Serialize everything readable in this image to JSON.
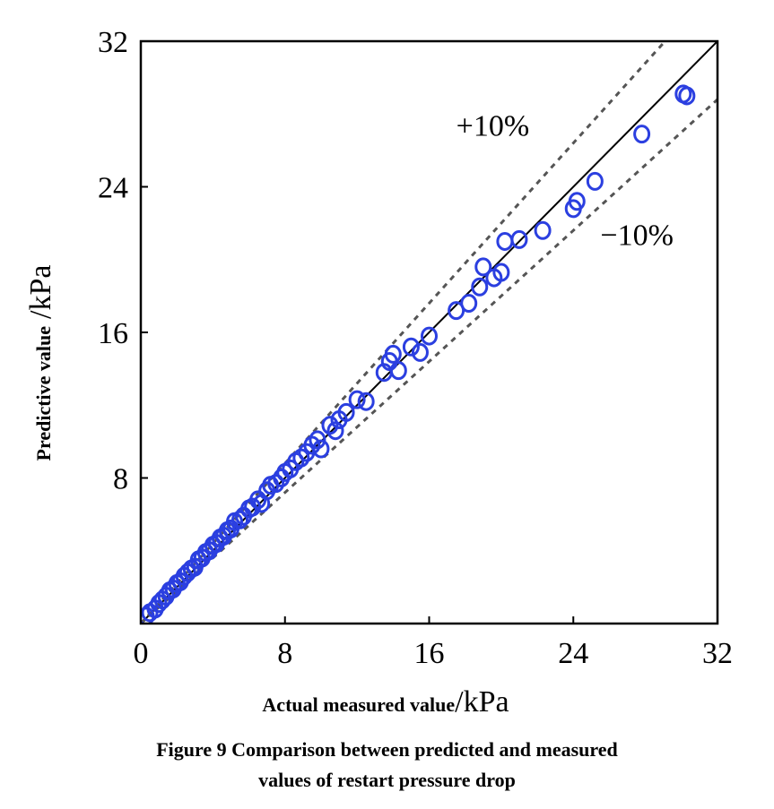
{
  "chart_data": {
    "type": "scatter",
    "xlabel": "Actual measured value",
    "xlabel_unit": "/kPa",
    "ylabel": "Predictive value",
    "ylabel_unit": "/kPa",
    "xlim": [
      0,
      32
    ],
    "ylim": [
      0,
      32
    ],
    "xticks": [
      0,
      8,
      16,
      24,
      32
    ],
    "yticks": [
      8,
      16,
      24,
      32
    ],
    "grid": false,
    "marker_color": "#2b3fe0",
    "reference_lines": [
      {
        "name": "y = x",
        "slope": 1.0,
        "style": "solid"
      },
      {
        "name": "+10%",
        "slope": 1.1,
        "style": "dashed"
      },
      {
        "name": "-10%",
        "slope": 0.9,
        "style": "dashed"
      }
    ],
    "annotations": [
      {
        "text": "+10%",
        "x": 17.5,
        "y": 26.8
      },
      {
        "text": "−10%",
        "x": 25.5,
        "y": 20.8
      }
    ],
    "series": [
      {
        "points": [
          [
            0.3,
            0.4
          ],
          [
            0.5,
            0.6
          ],
          [
            0.8,
            0.8
          ],
          [
            1.0,
            1.1
          ],
          [
            1.2,
            1.3
          ],
          [
            1.4,
            1.5
          ],
          [
            1.6,
            1.8
          ],
          [
            1.8,
            1.9
          ],
          [
            2.0,
            2.2
          ],
          [
            2.2,
            2.3
          ],
          [
            2.4,
            2.6
          ],
          [
            2.6,
            2.8
          ],
          [
            2.8,
            3.0
          ],
          [
            3.0,
            3.1
          ],
          [
            3.2,
            3.5
          ],
          [
            3.4,
            3.6
          ],
          [
            3.6,
            3.9
          ],
          [
            3.8,
            4.0
          ],
          [
            4.0,
            4.3
          ],
          [
            4.2,
            4.4
          ],
          [
            4.4,
            4.7
          ],
          [
            4.6,
            4.8
          ],
          [
            4.8,
            5.1
          ],
          [
            5.0,
            5.2
          ],
          [
            5.2,
            5.6
          ],
          [
            5.5,
            5.7
          ],
          [
            5.7,
            5.9
          ],
          [
            6.0,
            6.3
          ],
          [
            6.2,
            6.4
          ],
          [
            6.5,
            6.8
          ],
          [
            6.7,
            6.6
          ],
          [
            7.0,
            7.3
          ],
          [
            7.2,
            7.6
          ],
          [
            7.5,
            7.7
          ],
          [
            7.8,
            8.0
          ],
          [
            8.0,
            8.3
          ],
          [
            8.3,
            8.5
          ],
          [
            8.6,
            8.9
          ],
          [
            8.9,
            9.1
          ],
          [
            9.2,
            9.4
          ],
          [
            9.5,
            9.8
          ],
          [
            9.8,
            10.1
          ],
          [
            10.0,
            9.6
          ],
          [
            10.5,
            10.9
          ],
          [
            10.8,
            10.6
          ],
          [
            11.0,
            11.2
          ],
          [
            11.4,
            11.6
          ],
          [
            12.0,
            12.3
          ],
          [
            12.5,
            12.2
          ],
          [
            13.5,
            13.8
          ],
          [
            13.8,
            14.4
          ],
          [
            14.0,
            14.8
          ],
          [
            14.3,
            13.9
          ],
          [
            15.0,
            15.2
          ],
          [
            15.5,
            14.9
          ],
          [
            16.0,
            15.8
          ],
          [
            17.5,
            17.2
          ],
          [
            18.2,
            17.6
          ],
          [
            18.8,
            18.5
          ],
          [
            19.0,
            19.6
          ],
          [
            19.6,
            19.0
          ],
          [
            20.0,
            19.3
          ],
          [
            20.2,
            21.0
          ],
          [
            21.0,
            21.1
          ],
          [
            22.3,
            21.6
          ],
          [
            24.0,
            22.8
          ],
          [
            24.2,
            23.2
          ],
          [
            25.2,
            24.3
          ],
          [
            27.8,
            26.9
          ],
          [
            30.1,
            29.1
          ],
          [
            30.3,
            29.0
          ]
        ]
      }
    ]
  },
  "caption": {
    "line1": "Figure 9 Comparison between predicted and measured",
    "line2": "values of restart pressure drop"
  }
}
